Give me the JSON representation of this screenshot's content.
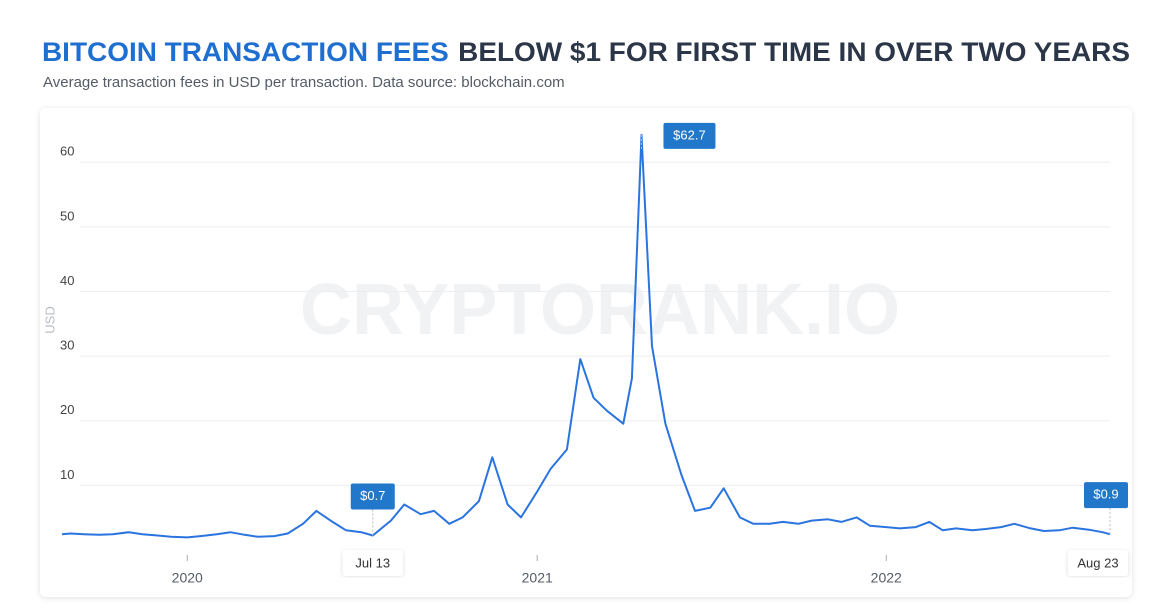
{
  "chart_data": {
    "type": "line",
    "title_highlight": "BITCOIN TRANSACTION FEES",
    "title": "BELOW $1 FOR FIRST TIME IN OVER TWO YEARS",
    "subtitle": "Average transaction fees in USD per transaction. Data source: blockchain.com",
    "y_label": "USD",
    "watermark": "CRYPTORANK.IO",
    "xlim": [
      "2019-08-23",
      "2022-08-23"
    ],
    "xticks": [
      "2020",
      "2021",
      "2022"
    ],
    "ylim": [
      0,
      65
    ],
    "yticks": [
      10,
      20,
      30,
      40,
      50,
      60
    ],
    "grid": true,
    "x": [
      "2019-08-23",
      "2019-09-01",
      "2019-09-15",
      "2019-10-01",
      "2019-10-15",
      "2019-11-01",
      "2019-11-15",
      "2019-12-01",
      "2019-12-15",
      "2020-01-01",
      "2020-01-15",
      "2020-02-01",
      "2020-02-15",
      "2020-03-01",
      "2020-03-15",
      "2020-04-01",
      "2020-04-15",
      "2020-05-01",
      "2020-05-15",
      "2020-06-01",
      "2020-06-15",
      "2020-07-01",
      "2020-07-13",
      "2020-08-01",
      "2020-08-15",
      "2020-09-01",
      "2020-09-15",
      "2020-10-01",
      "2020-10-15",
      "2020-11-01",
      "2020-11-15",
      "2020-12-01",
      "2020-12-15",
      "2021-01-01",
      "2021-01-15",
      "2021-02-01",
      "2021-02-15",
      "2021-03-01",
      "2021-03-15",
      "2021-04-01",
      "2021-04-10",
      "2021-04-20",
      "2021-05-01",
      "2021-05-15",
      "2021-06-01",
      "2021-06-15",
      "2021-07-01",
      "2021-07-15",
      "2021-08-01",
      "2021-08-15",
      "2021-09-01",
      "2021-09-15",
      "2021-10-01",
      "2021-10-15",
      "2021-11-01",
      "2021-11-15",
      "2021-12-01",
      "2021-12-15",
      "2022-01-01",
      "2022-01-15",
      "2022-02-01",
      "2022-02-15",
      "2022-03-01",
      "2022-03-15",
      "2022-04-01",
      "2022-04-15",
      "2022-05-01",
      "2022-05-15",
      "2022-06-01",
      "2022-06-15",
      "2022-07-01",
      "2022-07-15",
      "2022-08-01",
      "2022-08-15",
      "2022-08-23"
    ],
    "series": [
      {
        "name": "Average transaction fee",
        "color": "#2a74e0",
        "values": [
          0.9,
          1.0,
          0.9,
          0.8,
          0.9,
          1.2,
          0.9,
          0.7,
          0.5,
          0.4,
          0.6,
          0.9,
          1.2,
          0.8,
          0.5,
          0.6,
          1.0,
          2.5,
          4.5,
          2.8,
          1.5,
          1.2,
          0.7,
          3.0,
          5.5,
          4.0,
          4.5,
          2.5,
          3.5,
          6.0,
          12.8,
          5.5,
          3.5,
          7.5,
          11.0,
          14.0,
          28.0,
          22.0,
          20.0,
          18.0,
          25.0,
          62.7,
          30.0,
          18.0,
          10.0,
          4.5,
          5.0,
          8.0,
          3.5,
          2.5,
          2.5,
          2.8,
          2.5,
          3.0,
          3.2,
          2.8,
          3.5,
          2.2,
          2.0,
          1.8,
          2.0,
          2.8,
          1.5,
          1.8,
          1.5,
          1.7,
          2.0,
          2.5,
          1.8,
          1.4,
          1.5,
          1.9,
          1.6,
          1.2,
          0.9
        ]
      }
    ],
    "annotations": [
      {
        "x": "2020-07-13",
        "x_label": "Jul 13",
        "value": 0.7,
        "label": "$0.7"
      },
      {
        "x": "2021-04-20",
        "value": 62.7,
        "label": "$62.7"
      },
      {
        "x": "2022-08-23",
        "x_label": "Aug 23",
        "value": 0.9,
        "label": "$0.9"
      }
    ]
  }
}
